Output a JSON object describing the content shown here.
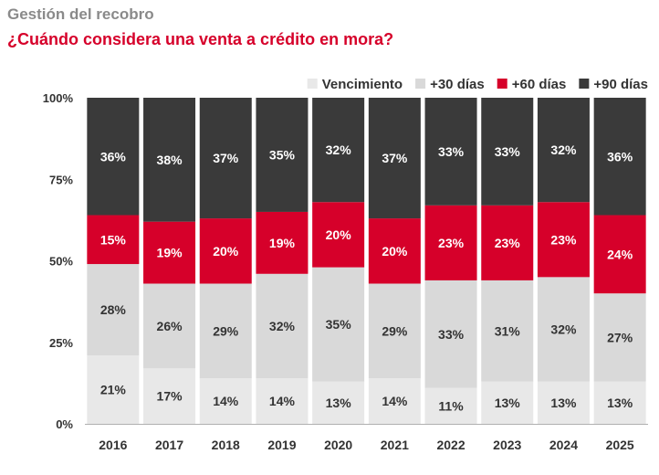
{
  "header": {
    "pre_title": "Gestión del recobro",
    "title": "¿Cuándo considera una venta a crédito en mora?"
  },
  "chart_data": {
    "type": "bar",
    "stacked": true,
    "categories": [
      "2016",
      "2017",
      "2018",
      "2019",
      "2020",
      "2021",
      "2022",
      "2023",
      "2024",
      "2025"
    ],
    "series": [
      {
        "name": "Vencimiento",
        "color": "#e8e8e8",
        "label_color": "#333333",
        "values": [
          21,
          17,
          14,
          14,
          13,
          14,
          11,
          13,
          13,
          13
        ]
      },
      {
        "name": "+30 días",
        "color": "#d9d9d9",
        "label_color": "#333333",
        "values": [
          28,
          26,
          29,
          32,
          35,
          29,
          33,
          31,
          32,
          27
        ]
      },
      {
        "name": "+60 días",
        "color": "#d6002a",
        "label_color": "#ffffff",
        "values": [
          15,
          19,
          20,
          19,
          20,
          20,
          23,
          23,
          23,
          24
        ]
      },
      {
        "name": "+90 días",
        "color": "#3a3a3a",
        "label_color": "#ffffff",
        "values": [
          36,
          38,
          37,
          35,
          32,
          37,
          33,
          33,
          32,
          36
        ]
      }
    ],
    "value_suffix": "%",
    "yticks": [
      "0%",
      "25%",
      "50%",
      "75%",
      "100%"
    ],
    "ylim": [
      0,
      100
    ],
    "legend_position": "top-right",
    "grid": false
  }
}
